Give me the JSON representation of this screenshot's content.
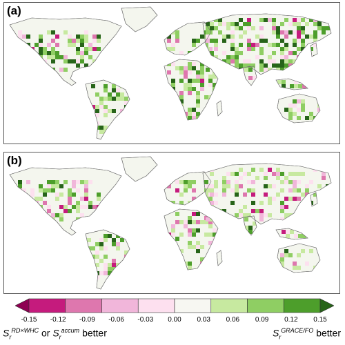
{
  "panels": [
    {
      "label": "(a)"
    },
    {
      "label": "(b)"
    }
  ],
  "colorbar": {
    "ticks": [
      "-0.15",
      "-0.12",
      "-0.09",
      "-0.06",
      "-0.03",
      "0.00",
      "0.03",
      "0.06",
      "0.09",
      "0.12",
      "0.15"
    ],
    "colors": [
      "#8e0152",
      "#c51b7d",
      "#de77ae",
      "#f1b6da",
      "#fde0ef",
      "#f7f7f2",
      "#c7e9a0",
      "#8fce63",
      "#4d9e2b",
      "#276419"
    ]
  },
  "captions": {
    "left": {
      "s1": "S",
      "sub1": "r",
      "sup1": "RD×WHC",
      "or": "or",
      "s2": "S",
      "sub2": "r",
      "sup2": "accum",
      "better": "better"
    },
    "right": {
      "s": "S",
      "sub": "r",
      "sup": "GRACE/FO",
      "better": "better"
    }
  }
}
